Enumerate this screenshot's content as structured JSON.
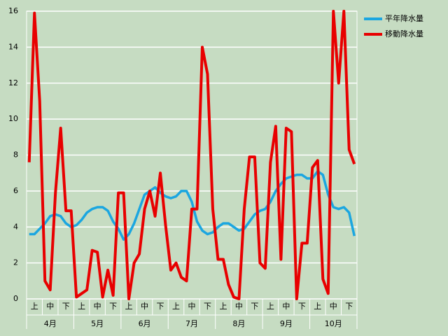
{
  "chart_data": {
    "type": "line",
    "categories": [
      null,
      "上",
      null,
      null,
      "中",
      null,
      null,
      "下",
      null,
      null,
      "上",
      null,
      null,
      "中",
      null,
      null,
      "下",
      null,
      null,
      "上",
      null,
      null,
      "中",
      null,
      null,
      "下",
      null,
      null,
      "上",
      null,
      null,
      "中",
      null,
      null,
      "下",
      null,
      null,
      "上",
      null,
      null,
      "中",
      null,
      null,
      "下",
      null,
      null,
      "上",
      null,
      null,
      "中",
      null,
      null,
      "下",
      null,
      null,
      "上",
      null,
      null,
      "中",
      null,
      null,
      "下",
      null
    ],
    "months": [
      "4月",
      "5月",
      "6月",
      "7月",
      "8月",
      "9月",
      "10月"
    ],
    "series": [
      {
        "name": "平年降水量",
        "color": "#1ba6e0",
        "values": [
          3.6,
          3.6,
          3.9,
          4.2,
          4.6,
          4.7,
          4.6,
          4.2,
          4.0,
          4.1,
          4.4,
          4.8,
          5.0,
          5.1,
          5.1,
          4.9,
          4.3,
          3.9,
          3.3,
          3.6,
          4.2,
          5.0,
          5.8,
          6.0,
          6.2,
          5.9,
          5.7,
          5.6,
          5.7,
          6.0,
          6.0,
          5.4,
          4.3,
          3.8,
          3.6,
          3.7,
          4.0,
          4.2,
          4.2,
          4.0,
          3.8,
          3.9,
          4.3,
          4.7,
          4.9,
          5.0,
          5.4,
          6.0,
          6.4,
          6.7,
          6.8,
          6.9,
          6.9,
          6.7,
          6.7,
          7.1,
          6.9,
          5.8,
          5.1,
          5.0,
          5.1,
          4.8,
          3.5
        ]
      },
      {
        "name": "移動降水量",
        "color": "#e80000",
        "values": [
          7.6,
          15.9,
          11,
          1,
          0.5,
          5.9,
          9.5,
          4.9,
          4.9,
          0.1,
          0.3,
          0.5,
          2.7,
          2.6,
          0.1,
          1.6,
          0.2,
          5.9,
          5.9,
          0,
          2,
          2.5,
          5,
          6,
          4.6,
          7,
          4.1,
          1.6,
          2,
          1.2,
          1,
          5,
          5,
          14,
          12.5,
          5,
          2.2,
          2.2,
          0.8,
          0.1,
          0,
          5,
          7.9,
          7.9,
          2,
          1.7,
          7.6,
          9.6,
          2.2,
          9.5,
          9.3,
          0,
          3.1,
          3.1,
          7.3,
          7.7,
          1.1,
          0.3,
          16,
          12,
          16,
          8.3,
          7.5
        ]
      }
    ],
    "ylim": [
      0,
      16
    ],
    "yticks": [
      0,
      2,
      4,
      6,
      8,
      10,
      12,
      14,
      16
    ],
    "grid": true,
    "legend": "right"
  }
}
